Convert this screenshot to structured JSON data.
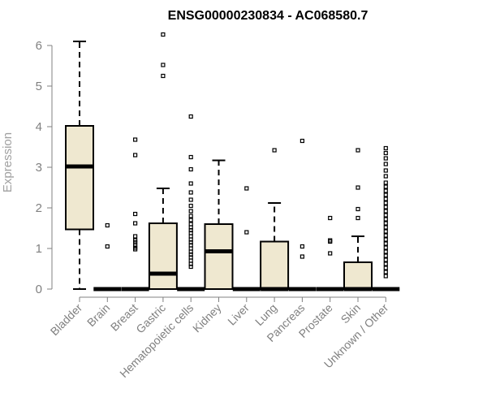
{
  "chart_data": {
    "type": "boxplot",
    "title": "ENSG00000230834 - AC068580.7",
    "ylabel": "Expression",
    "xlabel": "",
    "ylim": [
      0,
      6.3
    ],
    "yticks": [
      "0",
      "1",
      "2",
      "3",
      "4",
      "5",
      "6"
    ],
    "box_color": "#efe8d0",
    "categories": [
      "Bladder",
      "Brain",
      "Breast",
      "Gastric",
      "Hematopoietic cells",
      "Kidney",
      "Liver",
      "Lung",
      "Pancreas",
      "Prostate",
      "Skin",
      "Unknown / Other"
    ],
    "boxes": [
      {
        "min": 0,
        "q1": 1.47,
        "median": 3.02,
        "q3": 4.02,
        "max": 6.1,
        "outliers": []
      },
      {
        "min": 0,
        "q1": 0,
        "median": 0,
        "q3": 0,
        "max": 0,
        "outliers": [
          1.05,
          1.57
        ]
      },
      {
        "min": 0,
        "q1": 0,
        "median": 0,
        "q3": 0,
        "max": 0,
        "outliers": [
          0.98,
          1.02,
          1.08,
          1.15,
          1.2,
          1.3,
          1.62,
          1.85,
          3.3,
          3.68
        ]
      },
      {
        "min": 0,
        "q1": 0,
        "median": 0.38,
        "q3": 1.62,
        "max": 2.48,
        "outliers": [
          5.25,
          5.52,
          6.27
        ]
      },
      {
        "min": 0,
        "q1": 0,
        "median": 0,
        "q3": 0,
        "max": 0,
        "outliers": [
          0.55,
          0.62,
          0.7,
          0.78,
          0.85,
          0.92,
          1.0,
          1.08,
          1.15,
          1.22,
          1.3,
          1.38,
          1.45,
          1.52,
          1.6,
          1.7,
          1.8,
          1.92,
          2.05,
          2.2,
          2.38,
          2.6,
          2.95,
          3.25,
          4.25
        ]
      },
      {
        "min": 0,
        "q1": 0,
        "median": 0.93,
        "q3": 1.6,
        "max": 3.17,
        "outliers": []
      },
      {
        "min": 0,
        "q1": 0,
        "median": 0,
        "q3": 0,
        "max": 0,
        "outliers": [
          1.4,
          2.48
        ]
      },
      {
        "min": 0,
        "q1": 0,
        "median": 0,
        "q3": 1.17,
        "max": 2.12,
        "outliers": [
          3.42
        ]
      },
      {
        "min": 0,
        "q1": 0,
        "median": 0,
        "q3": 0,
        "max": 0,
        "outliers": [
          0.8,
          1.05,
          3.65
        ]
      },
      {
        "min": 0,
        "q1": 0,
        "median": 0,
        "q3": 0,
        "max": 0,
        "outliers": [
          0.88,
          1.17,
          1.2,
          1.75
        ]
      },
      {
        "min": 0,
        "q1": 0,
        "median": 0,
        "q3": 0.66,
        "max": 1.3,
        "outliers": [
          1.75,
          1.97,
          2.5,
          3.42
        ]
      },
      {
        "min": 0,
        "q1": 0,
        "median": 0,
        "q3": 0,
        "max": 0,
        "outliers": [
          0.32,
          0.42,
          0.52,
          0.62,
          0.72,
          0.82,
          0.92,
          1.02,
          1.12,
          1.22,
          1.32,
          1.42,
          1.52,
          1.62,
          1.72,
          1.82,
          1.92,
          2.02,
          2.12,
          2.22,
          2.32,
          2.42,
          2.52,
          2.62,
          2.78,
          2.92,
          3.08,
          3.22,
          3.35,
          3.47
        ]
      }
    ]
  }
}
